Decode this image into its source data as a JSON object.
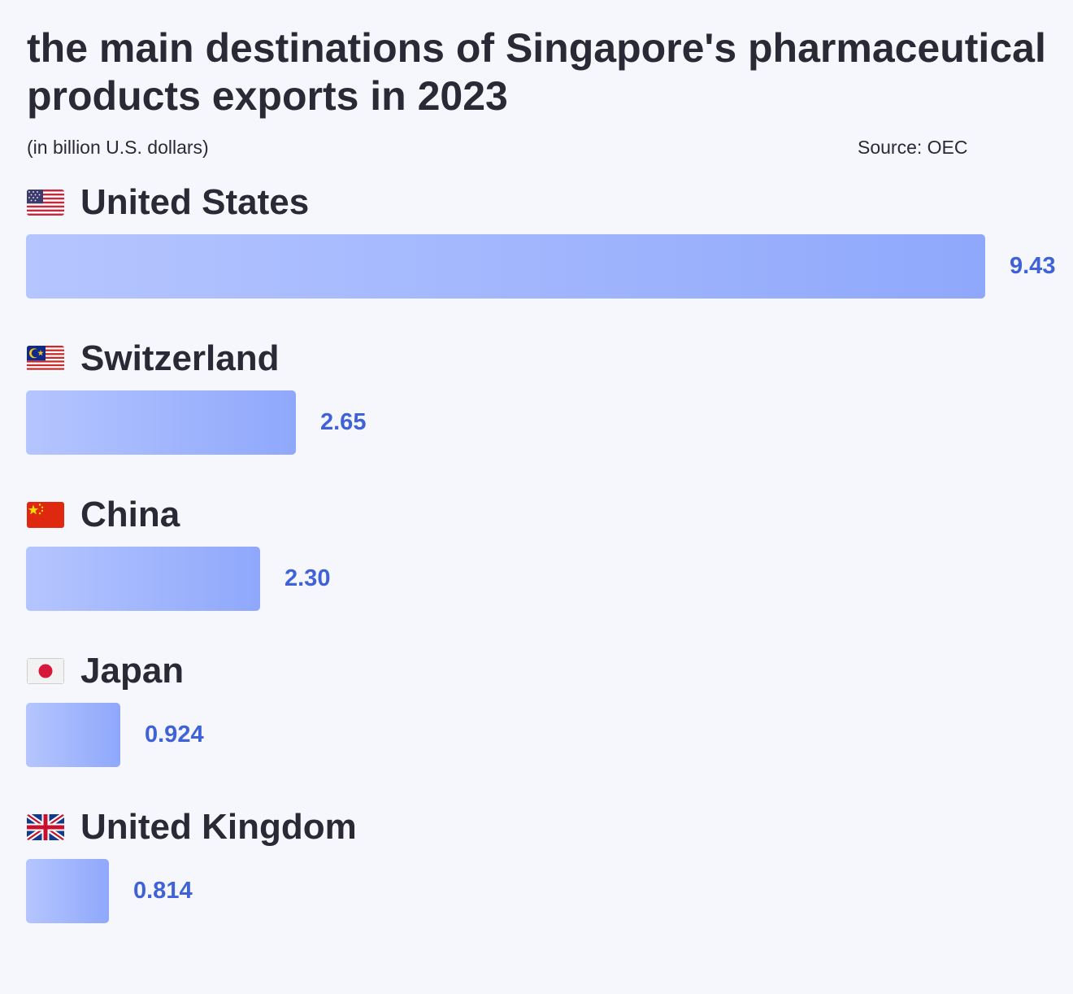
{
  "chart_data": {
    "type": "bar",
    "orientation": "horizontal",
    "title": "the main destinations of Singapore's pharmaceutical products exports in 2023",
    "subtitle": "(in billion U.S. dollars)",
    "source": "Source: OEC",
    "categories": [
      "United States",
      "Switzerland",
      "China",
      "Japan",
      "United Kingdom"
    ],
    "values": [
      9.43,
      2.65,
      2.3,
      0.924,
      0.814
    ],
    "value_labels": [
      "9.43",
      "2.65",
      "2.30",
      "0.924",
      "0.814"
    ],
    "flags": [
      "us-flag-icon",
      "malaysia-flag-icon",
      "china-flag-icon",
      "japan-flag-icon",
      "uk-flag-icon"
    ],
    "xlim": [
      0,
      9.43
    ],
    "grid": false,
    "legend": "none",
    "colors": {
      "bar_start": "#b5c5ff",
      "bar_end": "#8fa8fb",
      "value_text": "#3f62d8",
      "background": "#f6f7fc"
    }
  }
}
